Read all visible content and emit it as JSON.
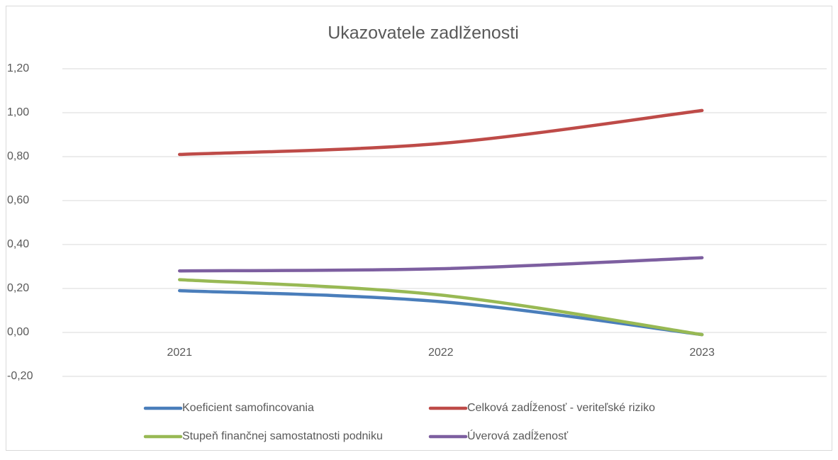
{
  "chart_data": {
    "type": "line",
    "title": "Ukazovatele zadlženosti",
    "categories": [
      "2021",
      "2022",
      "2023"
    ],
    "series": [
      {
        "name": "Koeficient samofincovania",
        "color": "#4a7ebb",
        "values": [
          0.19,
          0.14,
          -0.01
        ]
      },
      {
        "name": "Celková zadĺženosť - veriteľské riziko",
        "color": "#be4b48",
        "values": [
          0.81,
          0.86,
          1.01
        ]
      },
      {
        "name": "Stupeň finančnej samostatnosti podniku",
        "color": "#98b954",
        "values": [
          0.24,
          0.17,
          -0.01
        ]
      },
      {
        "name": "Úverová zadĺženosť",
        "color": "#7d5fa0",
        "values": [
          0.28,
          0.29,
          0.34
        ]
      }
    ],
    "ylim": [
      -0.2,
      1.2
    ],
    "yticks": [
      {
        "value": -0.2,
        "label": "-0,20"
      },
      {
        "value": 0,
        "label": "0,00"
      },
      {
        "value": 0.2,
        "label": "0,20"
      },
      {
        "value": 0.4,
        "label": "0,40"
      },
      {
        "value": 0.6,
        "label": "0,60"
      },
      {
        "value": 0.8,
        "label": "0,80"
      },
      {
        "value": 1.0,
        "label": "1,00"
      },
      {
        "value": 1.2,
        "label": "1,20"
      }
    ],
    "grid": true,
    "legend": "bottom"
  }
}
